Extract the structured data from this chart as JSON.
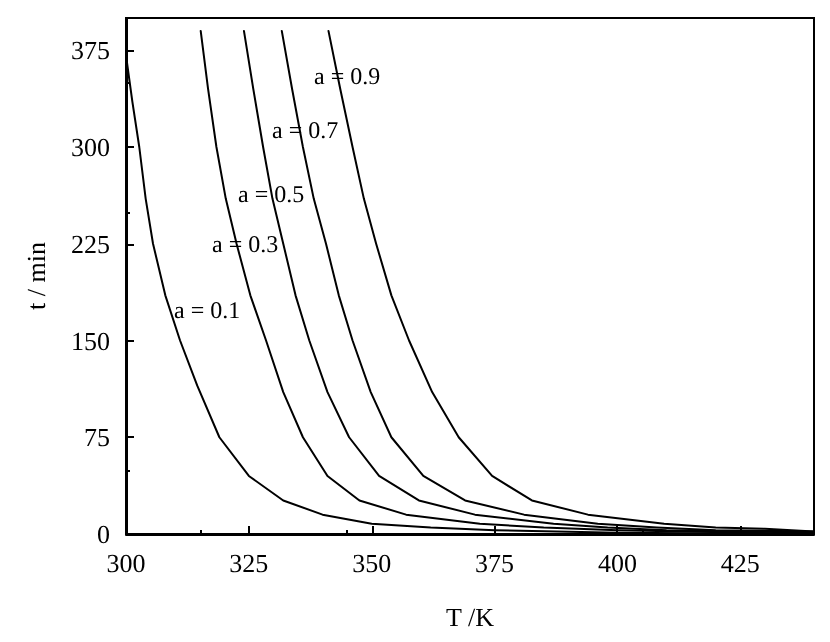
{
  "chart_data": {
    "type": "line",
    "xlabel": "T /K",
    "ylabel": "t / min",
    "xlim": [
      300,
      440
    ],
    "xticks": [
      300,
      325,
      350,
      375,
      400,
      425
    ],
    "ylim": [
      0,
      400
    ],
    "yticks": [
      0,
      75,
      150,
      225,
      300,
      375
    ],
    "marker": "none",
    "line_style": "solid",
    "series": [
      {
        "color": "#000000",
        "x": [
          300,
          301.3,
          302.7,
          304,
          305.5,
          308,
          311,
          314.5,
          319,
          325,
          332,
          340,
          350,
          362,
          375,
          400,
          440
        ],
        "values": [
          371,
          335,
          300,
          260,
          225,
          185,
          150,
          115,
          75,
          45,
          26,
          15,
          8,
          5,
          3,
          1,
          0
        ]
      },
      {
        "color": "#000000",
        "x": [
          315.2,
          316.7,
          318.4,
          320.3,
          322.5,
          325.3,
          328.5,
          332,
          336,
          341,
          347.5,
          357,
          372,
          385,
          400,
          440
        ],
        "values": [
          390,
          345,
          300,
          260,
          225,
          185,
          150,
          110,
          75,
          45,
          26,
          15,
          8,
          5,
          3,
          0
        ]
      },
      {
        "color": "#000000",
        "x": [
          324,
          325.9,
          327.9,
          329.8,
          332,
          334.5,
          337.3,
          341,
          345.4,
          351.5,
          359.6,
          371,
          387,
          398,
          410,
          440
        ],
        "values": [
          390,
          345,
          300,
          260,
          225,
          185,
          150,
          110,
          75,
          45,
          26,
          15,
          8,
          5,
          3,
          1
        ]
      },
      {
        "color": "#000000",
        "x": [
          331.7,
          333.8,
          336,
          338.2,
          340.7,
          343.3,
          346.1,
          349.8,
          354,
          360.5,
          369,
          381,
          396,
          408,
          420,
          440
        ],
        "values": [
          390,
          345,
          300,
          260,
          225,
          185,
          150,
          110,
          75,
          45,
          26,
          15,
          8,
          5,
          3,
          2
        ]
      },
      {
        "color": "#000000",
        "x": [
          341.2,
          343.6,
          346.1,
          348.4,
          350.9,
          354,
          357.6,
          362.3,
          367.7,
          374.5,
          382.6,
          394,
          409.5,
          420,
          430,
          440
        ],
        "values": [
          390,
          345,
          300,
          260,
          225,
          185,
          150,
          110,
          75,
          45,
          26,
          15,
          8,
          5,
          4,
          2
        ]
      }
    ],
    "annotations": [
      "a = 0.1",
      "a = 0.3",
      "a = 0.5",
      "a = 0.7",
      "a = 0.9"
    ]
  }
}
